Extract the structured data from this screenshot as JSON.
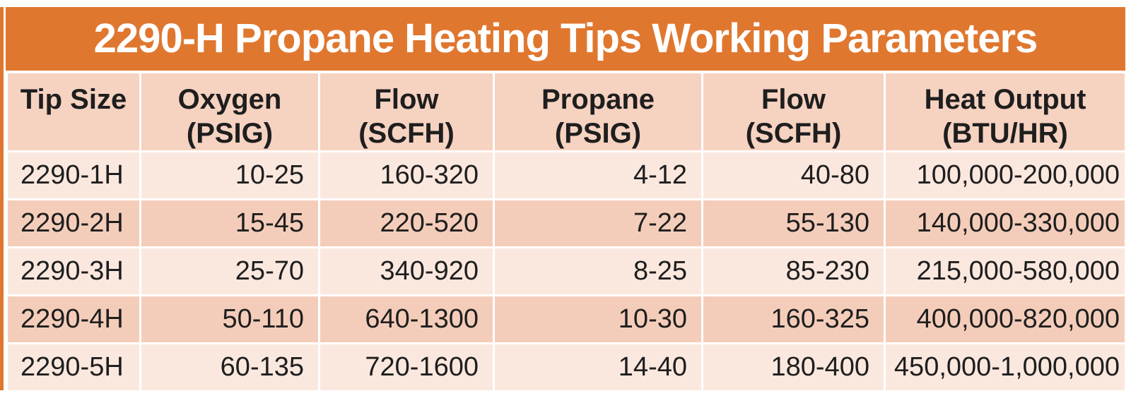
{
  "title": "2290-H Propane Heating Tips Working Parameters",
  "colors": {
    "accent_orange": "#E0772F",
    "header_bg": "#F6D2C1",
    "row_bg": "#FAE8DF",
    "row_alt_bg": "#F4CDBA",
    "text": "#1E1E1E",
    "title_text": "#FFFFFF"
  },
  "table": {
    "columns": [
      {
        "name": "Tip Size",
        "unit": ""
      },
      {
        "name": "Oxygen",
        "unit": "(PSIG)"
      },
      {
        "name": "Flow",
        "unit": "(SCFH)"
      },
      {
        "name": "Propane",
        "unit": "(PSIG)"
      },
      {
        "name": "Flow",
        "unit": "(SCFH)"
      },
      {
        "name": "Heat Output",
        "unit": "(BTU/HR)"
      }
    ],
    "rows": [
      [
        "2290-1H",
        "10-25",
        "160-320",
        "4-12",
        "40-80",
        "100,000-200,000"
      ],
      [
        "2290-2H",
        "15-45",
        "220-520",
        "7-22",
        "55-130",
        "140,000-330,000"
      ],
      [
        "2290-3H",
        "25-70",
        "340-920",
        "8-25",
        "85-230",
        "215,000-580,000"
      ],
      [
        "2290-4H",
        "50-110",
        "640-1300",
        "10-30",
        "160-325",
        "400,000-820,000"
      ],
      [
        "2290-5H",
        "60-135",
        "720-1600",
        "14-40",
        "180-400",
        "450,000-1,000,000"
      ]
    ]
  }
}
